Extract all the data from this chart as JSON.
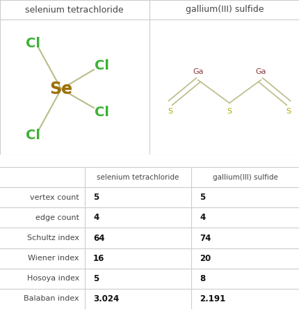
{
  "title1": "selenium tetrachloride",
  "title2": "gallium(III) sulfide",
  "table_col1": "selenium tetrachloride",
  "table_col2": "gallium(III) sulfide",
  "row_labels": [
    "vertex count",
    "edge count",
    "Schultz index",
    "Wiener index",
    "Hosoya index",
    "Balaban index"
  ],
  "col1_values": [
    "5",
    "4",
    "64",
    "16",
    "5",
    "3.024"
  ],
  "col2_values": [
    "5",
    "4",
    "74",
    "20",
    "8",
    "2.191"
  ],
  "color_Cl": "#3cb034",
  "color_Se": "#9b7000",
  "color_Ga": "#8b3a3a",
  "color_S": "#aaaa00",
  "bond_color": "#bbbb88",
  "bg_color": "#ffffff",
  "line_color": "#cccccc"
}
